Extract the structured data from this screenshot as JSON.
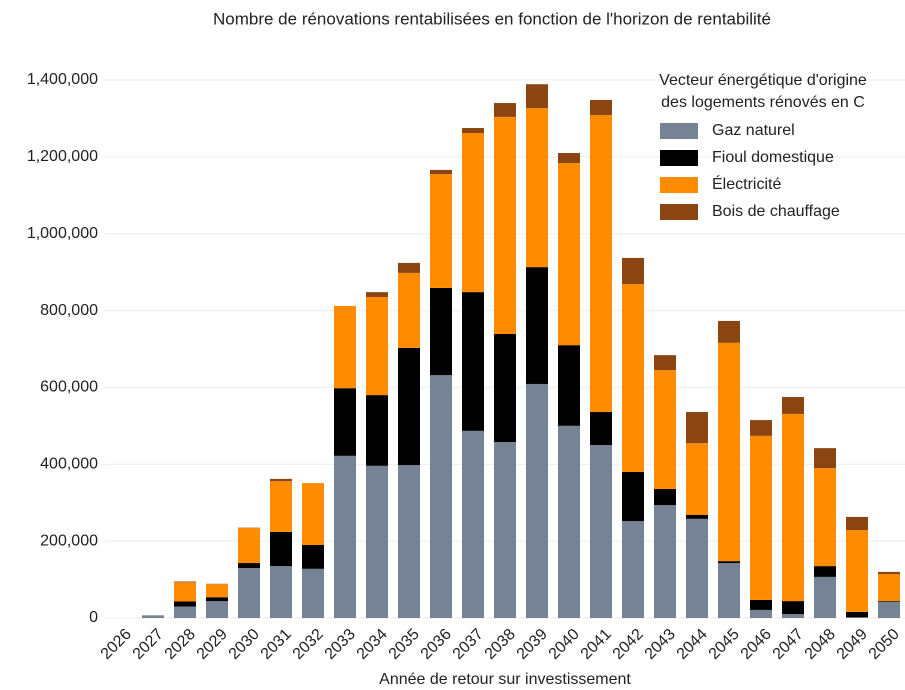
{
  "chart_data": {
    "type": "stacked-bar",
    "title": "Nombre de rénovations rentabilisées en fonction de l'horizon de rentabilité",
    "x_label": "Année de retour sur investissement",
    "legend_title": [
      "Vecteur énergétique d'origine",
      "des logements rénovés en C"
    ],
    "legend_position": "top-right",
    "grid": true,
    "categories": [
      "2026",
      "2027",
      "2028",
      "2029",
      "2030",
      "2031",
      "2032",
      "2033",
      "2034",
      "2035",
      "2036",
      "2037",
      "2038",
      "2039",
      "2040",
      "2041",
      "2042",
      "2043",
      "2044",
      "2045",
      "2046",
      "2047",
      "2048",
      "2049",
      "2050"
    ],
    "series": [
      {
        "name": "Gaz naturel",
        "color": "#768394",
        "values": [
          0,
          7000,
          30000,
          44000,
          130000,
          135000,
          128000,
          422000,
          396000,
          398000,
          632000,
          487000,
          458000,
          609000,
          500000,
          450000,
          252000,
          294000,
          258000,
          143000,
          21000,
          10000,
          107000,
          2000,
          42000
        ]
      },
      {
        "name": "Fioul domestique",
        "color": "#000000",
        "values": [
          0,
          0,
          13000,
          10000,
          13000,
          89000,
          62000,
          176000,
          184000,
          305000,
          227000,
          361000,
          281000,
          304000,
          210000,
          86000,
          128000,
          42000,
          10000,
          5000,
          26000,
          34000,
          28000,
          14000,
          2000
        ]
      },
      {
        "name": "Électricité",
        "color": "#ff8c00",
        "values": [
          0,
          0,
          50000,
          34000,
          91000,
          132000,
          161000,
          214000,
          255000,
          195000,
          296000,
          414000,
          565000,
          414000,
          474000,
          773000,
          489000,
          309000,
          187000,
          568000,
          427000,
          487000,
          255000,
          213000,
          70000
        ]
      },
      {
        "name": "Bois de chauffage",
        "color": "#8b4513",
        "values": [
          0,
          0,
          2000,
          1000,
          1000,
          6000,
          0,
          0,
          13000,
          26000,
          11000,
          13000,
          36000,
          62000,
          26000,
          39000,
          68000,
          39000,
          81000,
          57000,
          41000,
          44000,
          52000,
          34000,
          6000
        ]
      }
    ],
    "ylim": [
      0,
      1400000
    ],
    "yticks": [
      0,
      {
        "value": 200000,
        "label": "200,000"
      },
      {
        "value": 400000,
        "label": "400,000"
      },
      {
        "value": 600000,
        "label": "600,000"
      },
      {
        "value": 800000,
        "label": "800,000"
      },
      {
        "value": 1000000,
        "label": "1,000,000"
      },
      {
        "value": 1200000,
        "label": "1,200,000"
      },
      {
        "value": 1400000,
        "label": "1,400,000"
      }
    ]
  }
}
